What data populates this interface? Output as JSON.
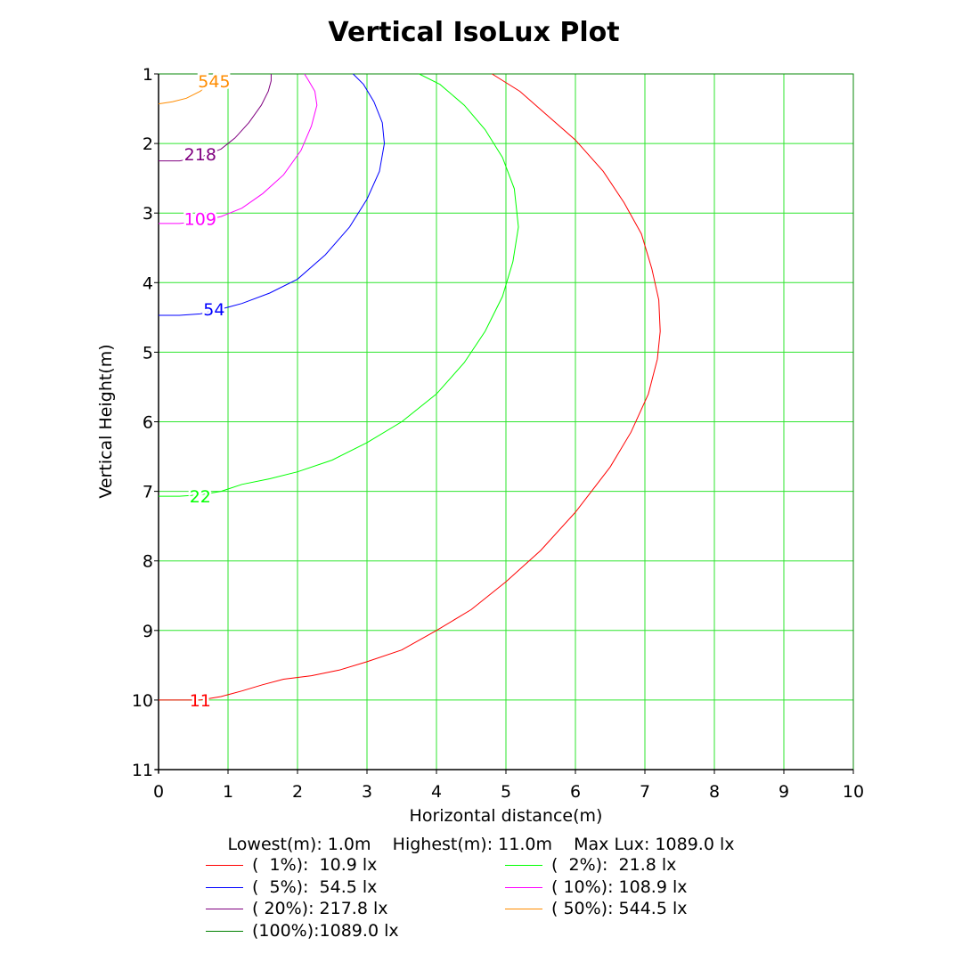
{
  "chart_data": {
    "type": "line",
    "title": "Vertical IsoLux Plot",
    "xlabel": "Horizontal distance(m)",
    "ylabel": "Vertical Height(m)",
    "xlim": [
      0,
      10
    ],
    "ylim": [
      1,
      11
    ],
    "y_inverted": true,
    "grid": true,
    "grid_color": "#2ee62e",
    "x_ticks": [
      "0",
      "1",
      "2",
      "3",
      "4",
      "5",
      "6",
      "7",
      "8",
      "9",
      "10"
    ],
    "y_ticks": [
      "1",
      "2",
      "3",
      "4",
      "5",
      "6",
      "7",
      "8",
      "9",
      "10",
      "11"
    ],
    "summary": {
      "lowest": "Lowest(m): 1.0m",
      "highest": "Highest(m): 11.0m",
      "max_lux": "Max Lux: 1089.0 lx"
    },
    "series": [
      {
        "name": "(  1%):  10.9 lx",
        "color": "#ff0000",
        "contour_label": "11",
        "label_at": [
          0.6,
          10.0
        ],
        "x": [
          0.0,
          0.3,
          0.6,
          0.9,
          1.2,
          1.5,
          1.8,
          2.2,
          2.6,
          3.0,
          3.5,
          4.0,
          4.5,
          5.0,
          5.5,
          6.0,
          6.5,
          6.8,
          7.05,
          7.18,
          7.22,
          7.2,
          7.1,
          6.95,
          6.7,
          6.4,
          6.0,
          5.6,
          5.2,
          4.8
        ],
        "y": [
          10.0,
          10.0,
          10.0,
          9.95,
          9.87,
          9.78,
          9.7,
          9.65,
          9.57,
          9.45,
          9.28,
          9.0,
          8.7,
          8.3,
          7.85,
          7.3,
          6.65,
          6.15,
          5.6,
          5.1,
          4.7,
          4.25,
          3.8,
          3.3,
          2.85,
          2.4,
          1.95,
          1.6,
          1.25,
          1.0
        ]
      },
      {
        "name": "(  2%):  21.8 lx",
        "color": "#00ff00",
        "contour_label": "22",
        "label_at": [
          0.6,
          7.07
        ],
        "x": [
          0.0,
          0.3,
          0.6,
          0.9,
          1.2,
          1.6,
          2.0,
          2.5,
          3.0,
          3.5,
          4.0,
          4.4,
          4.7,
          4.95,
          5.1,
          5.18,
          5.12,
          4.95,
          4.7,
          4.4,
          4.05,
          3.75
        ],
        "y": [
          7.07,
          7.07,
          7.05,
          7.0,
          6.9,
          6.82,
          6.72,
          6.55,
          6.3,
          6.0,
          5.6,
          5.15,
          4.7,
          4.2,
          3.7,
          3.2,
          2.65,
          2.2,
          1.8,
          1.45,
          1.15,
          1.0
        ]
      },
      {
        "name": "(  5%):  54.5 lx",
        "color": "#0000ff",
        "contour_label": "54",
        "label_at": [
          0.8,
          4.38
        ],
        "x": [
          0.0,
          0.3,
          0.6,
          0.9,
          1.2,
          1.6,
          2.0,
          2.4,
          2.75,
          3.0,
          3.18,
          3.25,
          3.22,
          3.1,
          2.95,
          2.8
        ],
        "y": [
          4.47,
          4.47,
          4.45,
          4.38,
          4.3,
          4.15,
          3.95,
          3.6,
          3.2,
          2.8,
          2.4,
          2.0,
          1.7,
          1.4,
          1.15,
          1.0
        ]
      },
      {
        "name": "( 10%): 108.9 lx",
        "color": "#ff00ff",
        "contour_label": "109",
        "label_at": [
          0.6,
          3.08
        ],
        "x": [
          0.0,
          0.3,
          0.6,
          0.9,
          1.2,
          1.5,
          1.8,
          2.05,
          2.2,
          2.28,
          2.25,
          2.15,
          2.1
        ],
        "y": [
          3.15,
          3.15,
          3.12,
          3.05,
          2.93,
          2.72,
          2.45,
          2.1,
          1.75,
          1.45,
          1.25,
          1.08,
          1.0
        ]
      },
      {
        "name": "( 20%): 217.8 lx",
        "color": "#800080",
        "contour_label": "218",
        "label_at": [
          0.6,
          2.15
        ],
        "x": [
          0.0,
          0.3,
          0.6,
          0.9,
          1.1,
          1.3,
          1.48,
          1.58,
          1.62,
          1.62
        ],
        "y": [
          2.25,
          2.25,
          2.2,
          2.08,
          1.92,
          1.7,
          1.45,
          1.25,
          1.1,
          1.0
        ]
      },
      {
        "name": "( 50%): 544.5 lx",
        "color": "#ff8c00",
        "contour_label": "545",
        "label_at": [
          0.8,
          1.1
        ],
        "x": [
          0.0,
          0.2,
          0.4,
          0.6,
          0.75,
          0.88
        ],
        "y": [
          1.43,
          1.4,
          1.35,
          1.25,
          1.12,
          1.0
        ]
      },
      {
        "name": "(100%):1089.0 lx",
        "color": "#008000",
        "x": [],
        "y": []
      }
    ]
  }
}
